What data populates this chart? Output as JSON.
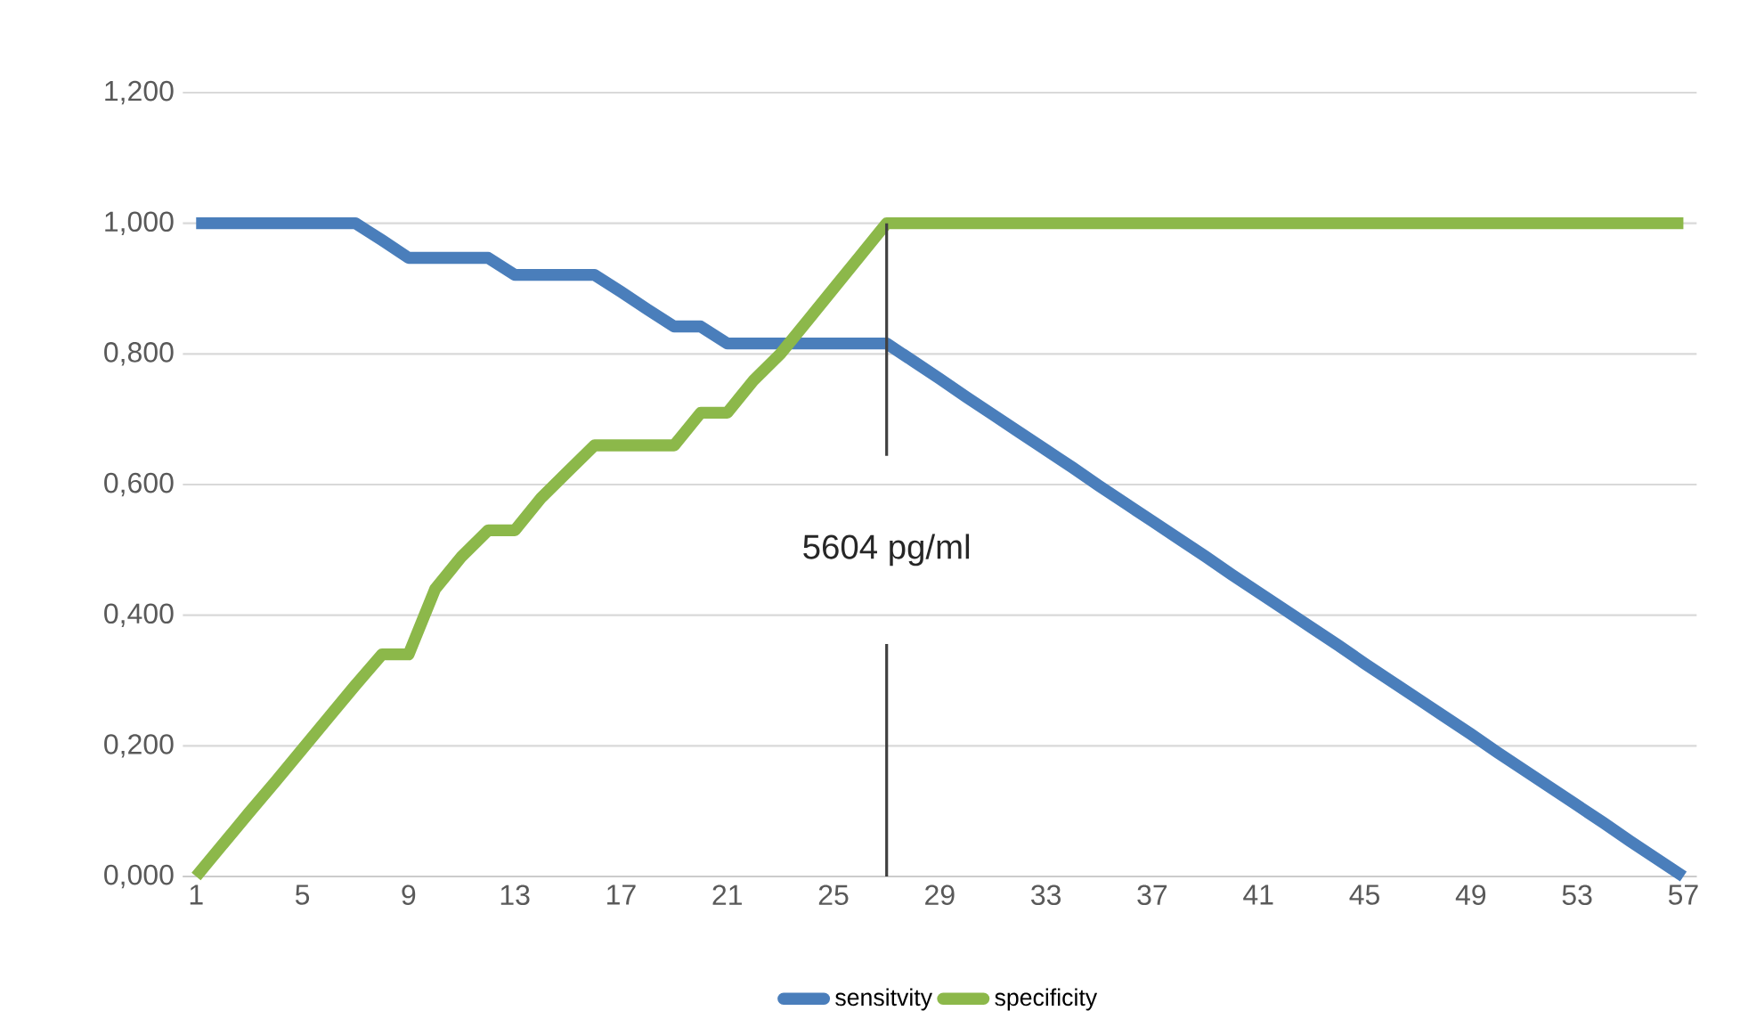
{
  "chart_data": {
    "type": "line",
    "x": [
      1,
      2,
      3,
      4,
      5,
      6,
      7,
      8,
      9,
      10,
      11,
      12,
      13,
      14,
      15,
      16,
      17,
      18,
      19,
      20,
      21,
      22,
      23,
      24,
      25,
      26,
      27,
      28,
      29,
      30,
      31,
      32,
      33,
      34,
      35,
      36,
      37,
      38,
      39,
      40,
      41,
      42,
      43,
      44,
      45,
      46,
      47,
      48,
      49,
      50,
      51,
      52,
      53,
      54,
      55,
      56,
      57
    ],
    "xlim": [
      0.5,
      57.5
    ],
    "xticks": [
      1,
      5,
      9,
      13,
      17,
      21,
      25,
      29,
      33,
      37,
      41,
      45,
      49,
      53,
      57
    ],
    "ylim": [
      0,
      1.2
    ],
    "yticks": [
      {
        "value": 0,
        "label": "0,000"
      },
      {
        "value": 0.2,
        "label": "0,200"
      },
      {
        "value": 0.4,
        "label": "0,400"
      },
      {
        "value": 0.6,
        "label": "0,600"
      },
      {
        "value": 0.8,
        "label": "0,800"
      },
      {
        "value": 1.0,
        "label": "1,000"
      },
      {
        "value": 1.2,
        "label": "1,200"
      }
    ],
    "series": [
      {
        "name": "sensitvity",
        "color": "#4a7ebb",
        "values": [
          1.0,
          1.0,
          1.0,
          1.0,
          1.0,
          1.0,
          1.0,
          0.974,
          0.947,
          0.947,
          0.947,
          0.947,
          0.921,
          0.921,
          0.921,
          0.921,
          0.895,
          0.868,
          0.842,
          0.842,
          0.816,
          0.816,
          0.816,
          0.816,
          0.816,
          0.816,
          0.816,
          0.789,
          0.762,
          0.734,
          0.707,
          0.68,
          0.653,
          0.626,
          0.598,
          0.571,
          0.544,
          0.517,
          0.49,
          0.462,
          0.435,
          0.408,
          0.381,
          0.354,
          0.326,
          0.299,
          0.272,
          0.245,
          0.218,
          0.19,
          0.163,
          0.136,
          0.109,
          0.082,
          0.054,
          0.027,
          0.0
        ]
      },
      {
        "name": "specificity",
        "color": "#8cb84a",
        "values": [
          0.0,
          0.049,
          0.098,
          0.146,
          0.195,
          0.244,
          0.293,
          0.34,
          0.34,
          0.44,
          0.49,
          0.53,
          0.53,
          0.58,
          0.62,
          0.66,
          0.66,
          0.66,
          0.66,
          0.71,
          0.71,
          0.76,
          0.8,
          0.85,
          0.9,
          0.95,
          1.0,
          1.0,
          1.0,
          1.0,
          1.0,
          1.0,
          1.0,
          1.0,
          1.0,
          1.0,
          1.0,
          1.0,
          1.0,
          1.0,
          1.0,
          1.0,
          1.0,
          1.0,
          1.0,
          1.0,
          1.0,
          1.0,
          1.0,
          1.0,
          1.0,
          1.0,
          1.0,
          1.0,
          1.0,
          1.0,
          1.0
        ]
      }
    ],
    "ref_lines": [
      {
        "axis": "x",
        "value": 27,
        "label": "5604 pg/ml",
        "color": "#404040"
      }
    ],
    "grid": "y",
    "legend": "bottom",
    "marker": "none",
    "line_style": "solid"
  }
}
